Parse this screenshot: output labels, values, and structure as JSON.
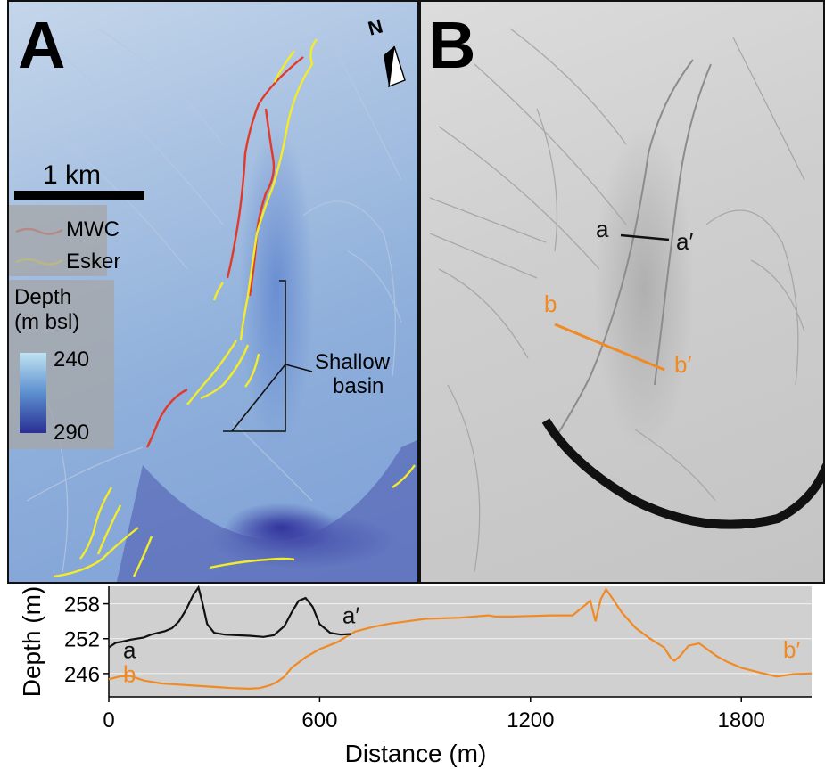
{
  "panel_a": {
    "letter": "A",
    "north_label": "N",
    "scale_label": "1 km",
    "legend": {
      "mwc_label": "MWC",
      "esker_label": "Esker"
    },
    "depth_legend": {
      "title_line1": "Depth",
      "title_line2": "(m bsl)",
      "max_label": "240",
      "min_label": "290"
    },
    "annotation": {
      "line1": "Shallow",
      "line2": "basin"
    },
    "colors": {
      "mwc": "#e23a2a",
      "esker": "#f2ec2a",
      "shallow": "#d9f0f7",
      "deep": "#2a2f94"
    }
  },
  "panel_b": {
    "letter": "B",
    "section_a_start": "a",
    "section_a_end": "a′",
    "section_b_start": "b",
    "section_b_end": "b′",
    "colors": {
      "section_a": "#111111",
      "section_b": "#f08a24"
    }
  },
  "chart_data": {
    "type": "line",
    "xlabel": "Distance (m)",
    "ylabel": "Depth (m)",
    "xlim": [
      0,
      2000
    ],
    "ylim": [
      261,
      242
    ],
    "x_ticks": [
      0,
      600,
      1200,
      1800
    ],
    "y_ticks": [
      246,
      252,
      258
    ],
    "grid": true,
    "series": [
      {
        "name": "a",
        "end_label": "a′",
        "color": "#111111",
        "x": [
          0,
          20,
          40,
          60,
          80,
          100,
          120,
          140,
          160,
          180,
          200,
          220,
          240,
          255,
          265,
          280,
          300,
          330,
          360,
          400,
          440,
          470,
          500,
          520,
          540,
          560,
          580,
          600,
          630,
          660,
          690
        ],
        "y": [
          250.5,
          251.3,
          251.5,
          251.8,
          252.0,
          252.2,
          252.7,
          253.0,
          253.3,
          253.8,
          255.0,
          257.0,
          259.5,
          260.8,
          258.5,
          254.5,
          253.0,
          252.7,
          252.6,
          252.5,
          252.3,
          252.6,
          254.2,
          256.5,
          258.5,
          259.0,
          257.5,
          254.5,
          253.0,
          252.7,
          252.8
        ]
      },
      {
        "name": "b",
        "end_label": "b′",
        "color": "#f08a24",
        "x": [
          0,
          30,
          60,
          100,
          150,
          200,
          250,
          300,
          350,
          400,
          430,
          460,
          480,
          500,
          520,
          560,
          600,
          650,
          700,
          750,
          800,
          850,
          900,
          1000,
          1080,
          1100,
          1150,
          1200,
          1260,
          1320,
          1370,
          1385,
          1400,
          1415,
          1430,
          1460,
          1500,
          1540,
          1580,
          1600,
          1610,
          1625,
          1650,
          1680,
          1730,
          1760,
          1800,
          1850,
          1900,
          1950,
          2000
        ],
        "y": [
          245.0,
          245.5,
          245.6,
          244.8,
          244.3,
          244.1,
          243.9,
          243.7,
          243.5,
          243.4,
          243.5,
          244.0,
          244.6,
          245.5,
          247.0,
          248.8,
          250.2,
          251.4,
          253.2,
          254.0,
          254.6,
          255.0,
          255.4,
          255.6,
          256.0,
          255.8,
          255.8,
          255.9,
          256.0,
          256.0,
          258.5,
          255.0,
          258.8,
          260.5,
          259.2,
          256.5,
          253.8,
          252.0,
          250.5,
          248.6,
          248.2,
          249.0,
          250.8,
          251.2,
          249.0,
          248.0,
          247.0,
          246.2,
          245.5,
          245.9,
          246.0
        ]
      }
    ]
  }
}
